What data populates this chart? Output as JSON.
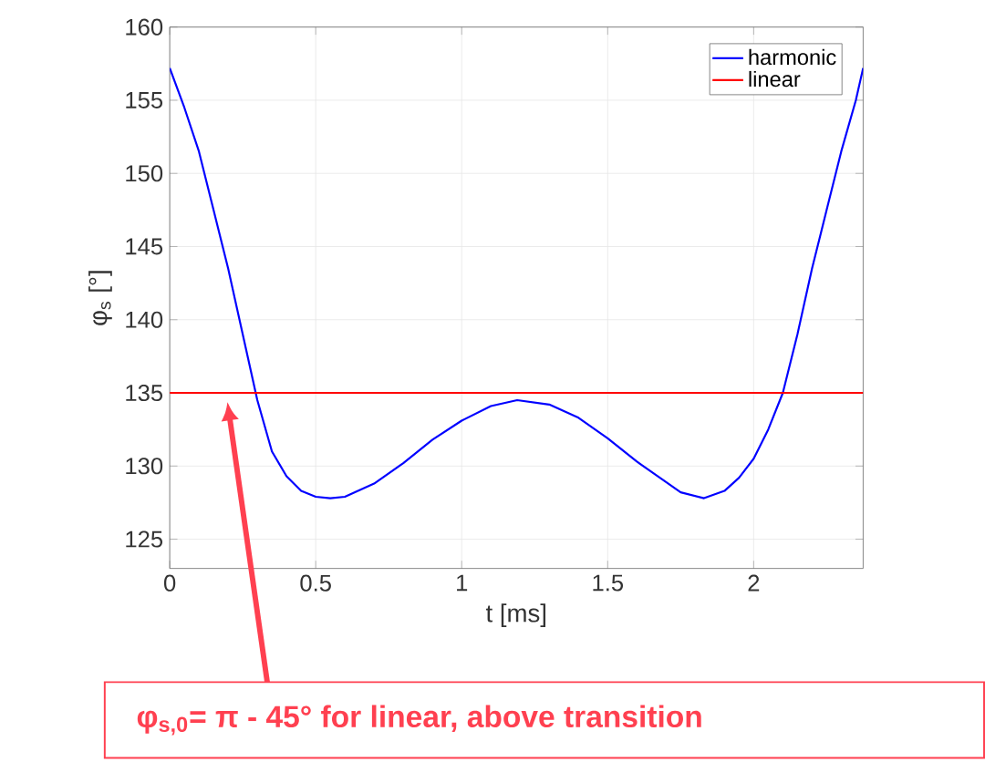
{
  "chart_data": {
    "type": "line",
    "xlabel": "t [ms]",
    "ylabel": "φ$_{s}$ [°]",
    "xlim": [
      0,
      2.375
    ],
    "ylim": [
      123,
      160
    ],
    "xticks": [
      0,
      0.5,
      1,
      1.5,
      2
    ],
    "yticks": [
      125,
      130,
      135,
      140,
      145,
      150,
      155,
      160
    ],
    "grid": true,
    "legend": "top right",
    "line_style": "solid",
    "marker": "none",
    "series": [
      {
        "name": "harmonic",
        "color": "#0000ff",
        "x": [
          0,
          0.05,
          0.1,
          0.15,
          0.2,
          0.25,
          0.3,
          0.35,
          0.4,
          0.45,
          0.5,
          0.55,
          0.6,
          0.7,
          0.8,
          0.9,
          1.0,
          1.1,
          1.19,
          1.3,
          1.4,
          1.5,
          1.6,
          1.7,
          1.75,
          1.83,
          1.9,
          1.95,
          2.0,
          2.05,
          2.1,
          2.15,
          2.2,
          2.25,
          2.3,
          2.35,
          2.375
        ],
        "values": [
          157.2,
          154.5,
          151.5,
          147.5,
          143.5,
          139,
          134.5,
          131,
          129.3,
          128.3,
          127.9,
          127.8,
          127.9,
          128.8,
          130.2,
          131.8,
          133.1,
          134.1,
          134.5,
          134.2,
          133.3,
          131.9,
          130.3,
          128.9,
          128.2,
          127.8,
          128.3,
          129.2,
          130.5,
          132.5,
          135,
          139,
          143.5,
          147.5,
          151.5,
          155,
          157.2
        ]
      },
      {
        "name": "linear",
        "color": "#ff0000",
        "x": [
          0,
          2.375
        ],
        "values": [
          135,
          135
        ]
      }
    ],
    "annotations": [
      "φ$_{s,0}$= π - 45° for linear, above transition"
    ]
  }
}
